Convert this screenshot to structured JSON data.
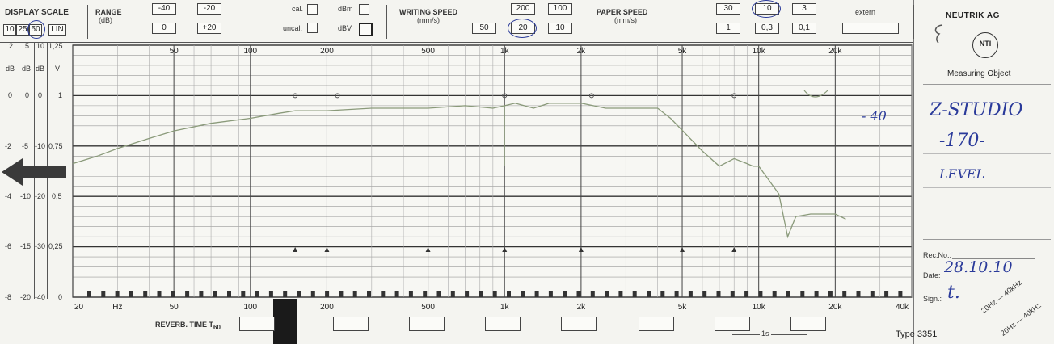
{
  "header": {
    "display_scale_label": "DISPLAY SCALE",
    "scale_buttons": [
      "10",
      "25",
      "50",
      "LIN"
    ],
    "scale_cols": [
      [
        "2",
        "dB",
        "0",
        "-2",
        "-4",
        "-6",
        "-8"
      ],
      [
        "5",
        "dB",
        "0",
        "-5",
        "-10",
        "-15",
        "-20"
      ],
      [
        "10",
        "dB",
        "0",
        "-10",
        "-20",
        "-30",
        "-40"
      ],
      [
        "1,25",
        "V",
        "1",
        "0,75",
        "0,5",
        "0,25",
        "0"
      ]
    ],
    "range_label": "RANGE",
    "range_unit": "(dB)",
    "range_buttons": [
      "-40",
      "-20",
      "0",
      "+20"
    ],
    "cal_label": "cal.",
    "uncal_label": "uncal.",
    "dbm_label": "dBm",
    "dbv_label": "dBV",
    "writing_speed_label": "WRITING SPEED",
    "writing_speed_unit": "(mm/s)",
    "writing_buttons_top": [
      "200",
      "100"
    ],
    "writing_buttons_bottom": [
      "50",
      "20",
      "10"
    ],
    "paper_speed_label": "PAPER SPEED",
    "paper_speed_unit": "(mm/s)",
    "paper_buttons_top": [
      "30",
      "10",
      "3"
    ],
    "paper_buttons_bottom": [
      "1",
      "0,3",
      "0,1"
    ],
    "extern_label": "extern"
  },
  "sidebar": {
    "brand": "NEUTRIK AG",
    "logo_text": "NTI",
    "measuring_object_label": "Measuring Object",
    "handwritten_value": "- 40",
    "handwritten_lines": [
      "Z-STUDIO",
      "-170-",
      "LEVEL"
    ],
    "rec_no_label": "Rec.No.:",
    "date_label": "Date:",
    "date_value": "28.10.10",
    "sign_label": "Sign.:",
    "sign_value": "t.",
    "range_note_1": "20Hz — 40kHz",
    "range_note_2": "20Hz — 40kHz",
    "type_label": "Type 3351"
  },
  "footer": {
    "reverb_label": "REVERB. TIME T",
    "reverb_sub": "60",
    "time_marker": "1s"
  },
  "chart_data": {
    "type": "line",
    "title": "",
    "xlabel": "Hz",
    "ylabel": "dB",
    "x_scale": "log",
    "xlim": [
      20,
      40000
    ],
    "ylim": [
      -40,
      10
    ],
    "x_ticks_top": [
      "50",
      "100",
      "200",
      "500",
      "1k",
      "2k",
      "5k",
      "10k",
      "20k"
    ],
    "x_ticks_bottom": [
      "20",
      "Hz",
      "50",
      "100",
      "200",
      "500",
      "1k",
      "2k",
      "5k",
      "10k",
      "20k",
      "40k"
    ],
    "grid": true,
    "series": [
      {
        "x": [
          20,
          25,
          30,
          40,
          50,
          70,
          100,
          130,
          150,
          200,
          300,
          400,
          500,
          700,
          900,
          1000,
          1100,
          1300,
          1500,
          2000,
          2500,
          3000,
          4000,
          4500,
          6000,
          7000,
          8000,
          9000,
          9500,
          10000,
          12000,
          13000,
          14000,
          16000,
          20000,
          22000
        ],
        "y": [
          -13.5,
          -12,
          -10.5,
          -8.5,
          -7,
          -5.5,
          -4.5,
          -3.5,
          -3,
          -3,
          -2.5,
          -2.5,
          -2.5,
          -2,
          -2.5,
          -2,
          -1.5,
          -2.5,
          -1.5,
          -1.5,
          -2.5,
          -2.5,
          -2.5,
          -4.5,
          -11,
          -14,
          -12.5,
          -13.5,
          -14,
          -14,
          -19.5,
          -28,
          -24,
          -23.5,
          -23.5,
          -24.5
        ]
      }
    ]
  }
}
